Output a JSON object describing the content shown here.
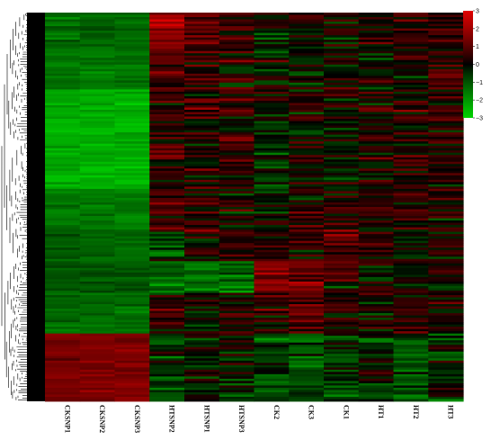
{
  "chart_data": {
    "type": "heatmap",
    "title": "",
    "xlabel": "",
    "ylabel": "",
    "columns": [
      "CKSNP1",
      "CKSNP2",
      "CKSNP3",
      "HTSNP2",
      "HTSNP1",
      "HTSNP3",
      "CK2",
      "CK3",
      "CK1",
      "HT1",
      "HT2",
      "HT3"
    ],
    "color_scale": {
      "min": -3,
      "max": 3,
      "ticks": [
        3,
        2,
        1,
        0,
        -1,
        -2,
        -3
      ],
      "low_color": "#00d400",
      "mid_color": "#000000",
      "high_color": "#e00000"
    },
    "row_dendrogram": true,
    "row_blocks": [
      {
        "rows": 18,
        "values": [
          -1.3,
          -1.3,
          -1.4,
          1.6,
          1.0,
          0.6,
          -0.2,
          0.1,
          0.2,
          0.3,
          0.5,
          0.5
        ]
      },
      {
        "rows": 16,
        "values": [
          -1.5,
          -1.5,
          -1.5,
          1.0,
          0.5,
          0.2,
          -0.3,
          -0.1,
          0.3,
          0.0,
          0.2,
          0.4
        ]
      },
      {
        "rows": 44,
        "values": [
          -2.4,
          -2.4,
          -2.4,
          0.5,
          0.3,
          0.3,
          -0.3,
          0.1,
          0.0,
          0.1,
          0.3,
          0.4
        ]
      },
      {
        "rows": 18,
        "values": [
          -1.5,
          -1.5,
          -1.6,
          0.6,
          0.3,
          0.1,
          0.0,
          0.3,
          0.7,
          0.5,
          0.3,
          0.2
        ]
      },
      {
        "rows": 14,
        "values": [
          -1.1,
          -1.2,
          -1.3,
          -0.4,
          0.4,
          0.2,
          0.3,
          0.6,
          1.2,
          0.6,
          0.2,
          0.0
        ]
      },
      {
        "rows": 14,
        "values": [
          -1.0,
          -1.0,
          -1.0,
          -1.2,
          -1.3,
          -1.4,
          1.5,
          1.2,
          0.4,
          0.0,
          0.1,
          0.2
        ]
      },
      {
        "rows": 18,
        "values": [
          -1.3,
          -1.3,
          -1.4,
          0.4,
          0.1,
          0.2,
          0.4,
          1.0,
          0.3,
          0.1,
          0.2,
          0.0
        ]
      },
      {
        "rows": 30,
        "values": [
          1.4,
          1.5,
          1.5,
          -0.6,
          -0.3,
          -0.4,
          -0.6,
          -0.9,
          -0.6,
          -0.4,
          -0.6,
          -0.3
        ]
      }
    ]
  }
}
